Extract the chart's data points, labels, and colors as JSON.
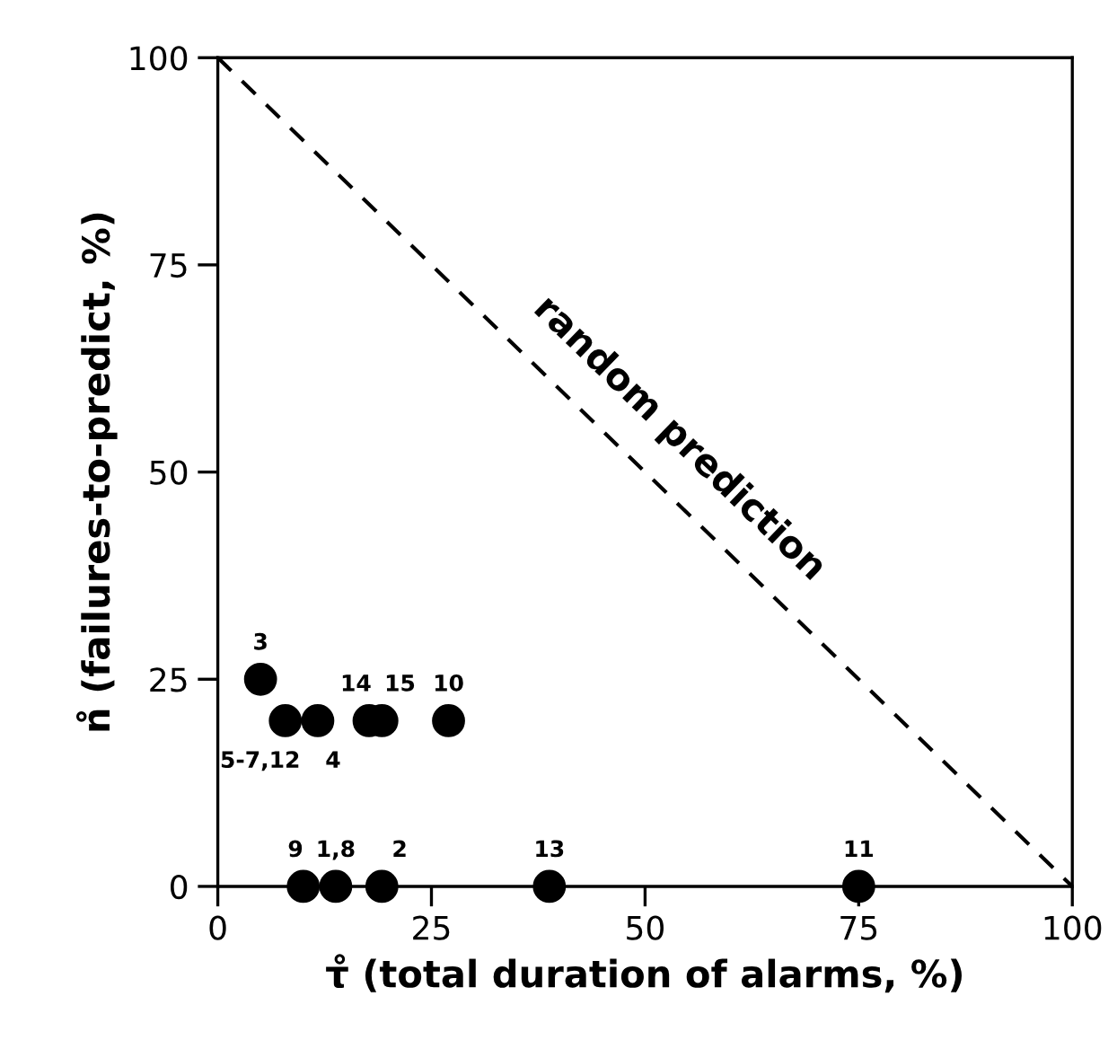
{
  "chart_data": {
    "type": "scatter",
    "xlabel": "τ̊ (total duration of alarms, %)",
    "ylabel": "n̊ (failures-to-predict, %)",
    "xlim": [
      0,
      100
    ],
    "ylim": [
      0,
      100
    ],
    "xticks": [
      0,
      25,
      50,
      75,
      100
    ],
    "yticks": [
      0,
      25,
      50,
      75,
      100
    ],
    "grid": false,
    "legend": false,
    "marker": "circle",
    "series": [
      {
        "color": "#000000",
        "x": [
          5,
          7.9,
          11.7,
          17.7,
          19.2,
          27,
          10,
          13.8,
          19.2,
          38.8,
          75
        ],
        "values": [
          25,
          20,
          20,
          20,
          20,
          20,
          0,
          0,
          0,
          0,
          0
        ]
      },
      {
        "type": "line",
        "name": "random prediction",
        "line_style": "dashed",
        "marker": "none",
        "color": "#000000",
        "x": [
          0,
          100
        ],
        "values": [
          100,
          0
        ]
      }
    ],
    "annotations": [
      {
        "text": "3",
        "x": 5,
        "y": 25
      },
      {
        "text": "5-7,12",
        "x": 7.9,
        "y": 20
      },
      {
        "text": "4",
        "x": 11.7,
        "y": 20
      },
      {
        "text": "14",
        "x": 17.7,
        "y": 20
      },
      {
        "text": "15",
        "x": 19.2,
        "y": 20
      },
      {
        "text": "10",
        "x": 27,
        "y": 20
      },
      {
        "text": "9",
        "x": 10,
        "y": 0
      },
      {
        "text": "1,8",
        "x": 13.8,
        "y": 0
      },
      {
        "text": "2",
        "x": 19.2,
        "y": 0
      },
      {
        "text": "13",
        "x": 38.8,
        "y": 0
      },
      {
        "text": "11",
        "x": 75,
        "y": 0
      }
    ]
  }
}
